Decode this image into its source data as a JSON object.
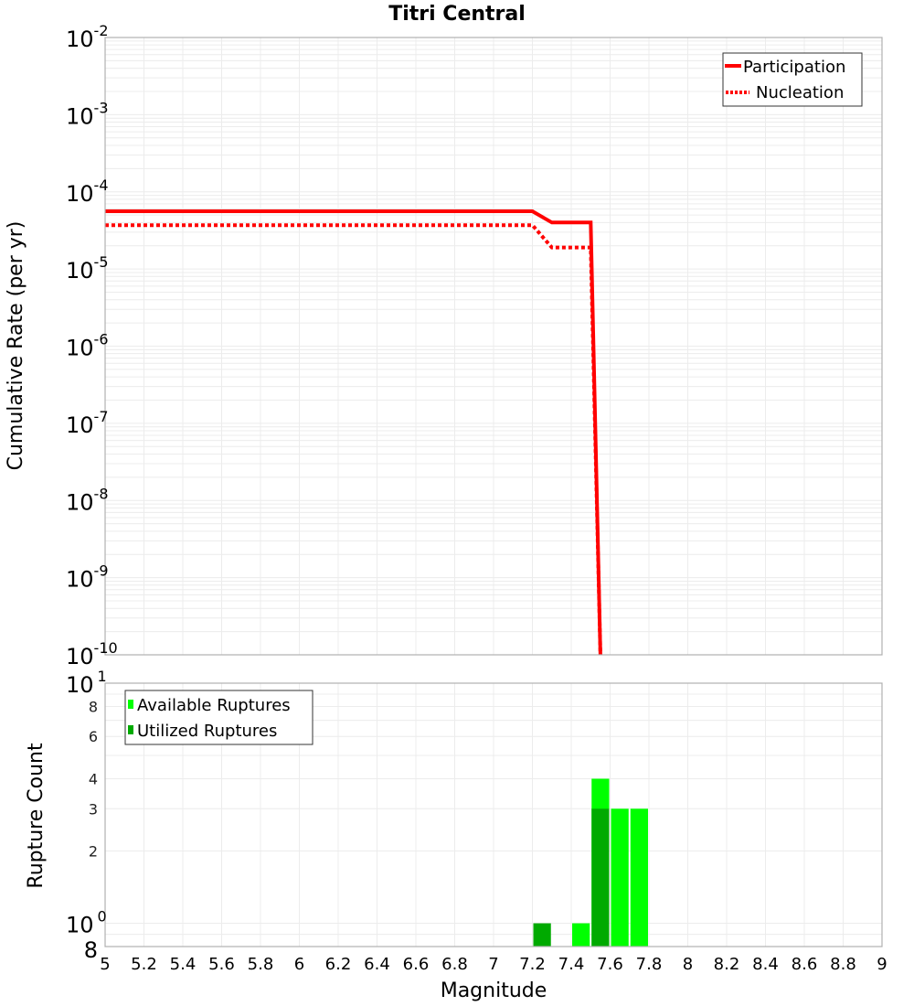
{
  "chart_data": [
    {
      "type": "line",
      "title": "Titri Central",
      "xlabel": "Magnitude",
      "ylabel": "Cumulative Rate (per yr)",
      "xlim": [
        5,
        9
      ],
      "ylim": [
        1e-10,
        0.01
      ],
      "yscale": "log",
      "grid": true,
      "legend_position": "upper right",
      "x_ticks": [
        "5",
        "5.2",
        "5.4",
        "5.6",
        "5.8",
        "6",
        "6.2",
        "6.4",
        "6.6",
        "6.8",
        "7",
        "7.2",
        "7.4",
        "7.6",
        "7.8",
        "8",
        "8.2",
        "8.4",
        "8.6",
        "8.8",
        "9"
      ],
      "y_ticks": [
        {
          "base": "10",
          "exp": "-2"
        },
        {
          "base": "10",
          "exp": "-3"
        },
        {
          "base": "10",
          "exp": "-4"
        },
        {
          "base": "10",
          "exp": "-5"
        },
        {
          "base": "10",
          "exp": "-6"
        },
        {
          "base": "10",
          "exp": "-7"
        },
        {
          "base": "10",
          "exp": "-8"
        },
        {
          "base": "10",
          "exp": "-9"
        },
        {
          "base": "10",
          "exp": "-10"
        }
      ],
      "series": [
        {
          "name": "Participation",
          "style": "solid",
          "color": "#ff0000",
          "x": [
            5.0,
            7.2,
            7.3,
            7.5,
            7.55
          ],
          "y": [
            5.6e-05,
            5.6e-05,
            4e-05,
            4e-05,
            1e-10
          ]
        },
        {
          "name": "Nucleation",
          "style": "dotted",
          "color": "#ff0000",
          "x": [
            5.0,
            7.2,
            7.3,
            7.5,
            7.55
          ],
          "y": [
            3.7e-05,
            3.7e-05,
            1.9e-05,
            1.9e-05,
            1e-10
          ]
        }
      ]
    },
    {
      "type": "bar",
      "title": "",
      "xlabel": "Magnitude",
      "ylabel": "Rupture Count",
      "xlim": [
        5,
        9
      ],
      "ylim": [
        0.8,
        10
      ],
      "yscale": "log",
      "grid": true,
      "legend_position": "upper left",
      "bin_width": 0.1,
      "y_ticks": [
        {
          "label": "8",
          "value": 0.8,
          "style": "big"
        },
        {
          "label": "10",
          "exp": "0",
          "value": 1,
          "style": "big"
        },
        {
          "label": "2",
          "value": 2,
          "style": "small"
        },
        {
          "label": "3",
          "value": 3,
          "style": "small"
        },
        {
          "label": "4",
          "value": 4,
          "style": "small"
        },
        {
          "label": "6",
          "value": 6,
          "style": "small"
        },
        {
          "label": "8",
          "value": 8,
          "style": "small"
        },
        {
          "label": "10",
          "exp": "1",
          "value": 10,
          "style": "big"
        }
      ],
      "categories": [
        "7.25",
        "7.45",
        "7.55",
        "7.65",
        "7.75"
      ],
      "series": [
        {
          "name": "Available Ruptures",
          "color": "#00ff00",
          "values": [
            0,
            1,
            4,
            3,
            3
          ]
        },
        {
          "name": "Utilized Ruptures",
          "color": "#00aa00",
          "values": [
            1,
            0,
            3,
            0,
            0
          ]
        }
      ]
    }
  ],
  "top_chart": {
    "title": "Titri Central",
    "ylabel": "Cumulative Rate (per yr)",
    "legend": [
      {
        "label": "Participation",
        "color": "#ff0000",
        "style": "solid"
      },
      {
        "label": "Nucleation",
        "color": "#ff0000",
        "style": "dotted"
      }
    ]
  },
  "bottom_chart": {
    "ylabel": "Rupture Count",
    "xlabel": "Magnitude",
    "legend": [
      {
        "label": "Available Ruptures",
        "color": "#00ff00"
      },
      {
        "label": "Utilized Ruptures",
        "color": "#00aa00"
      }
    ]
  }
}
